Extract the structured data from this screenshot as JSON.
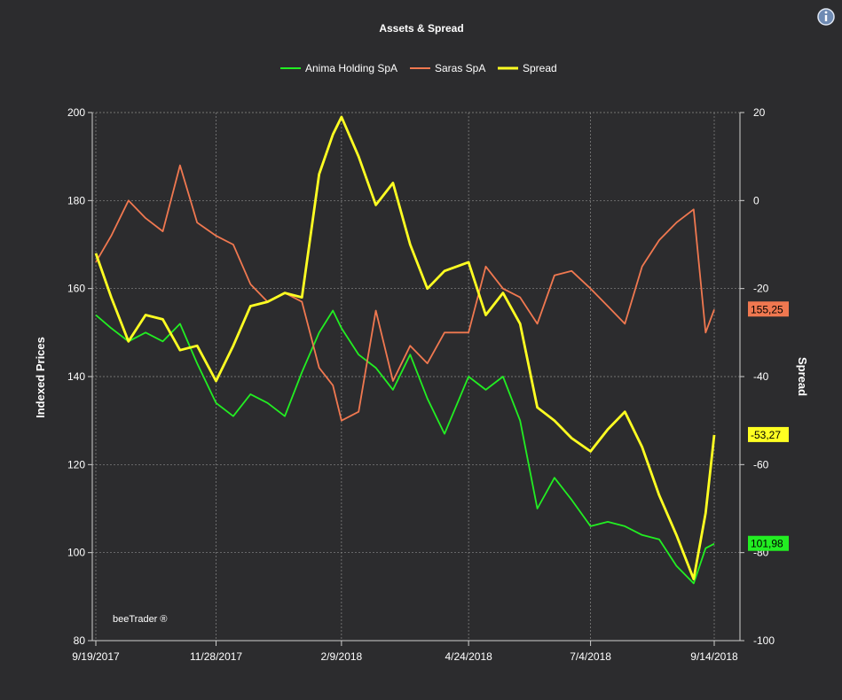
{
  "chart_data": {
    "type": "line",
    "title": "Assets & Spread",
    "credit": "beeTrader ®",
    "x_tick_labels": [
      "9/19/2017",
      "11/28/2017",
      "2/9/2018",
      "4/24/2018",
      "7/4/2018",
      "9/14/2018"
    ],
    "x_range": [
      "9/19/2017",
      "9/14/2018"
    ],
    "y_left": {
      "label": "Indexed Prices",
      "min": 80,
      "max": 200,
      "ticks": [
        80,
        100,
        120,
        140,
        160,
        180,
        200
      ]
    },
    "y_right": {
      "label": "Spread",
      "min": -100,
      "max": 20,
      "ticks": [
        -100,
        -80,
        -60,
        -40,
        -20,
        0,
        20
      ]
    },
    "grid": true,
    "legend_position": "top-center",
    "series": [
      {
        "name": "Anima Holding SpA",
        "color": "#22ee22",
        "axis": "left",
        "last_value_label": "101,98",
        "points": [
          [
            "9/19/2017",
            154
          ],
          [
            "9/28/2017",
            151
          ],
          [
            "10/8/2017",
            148
          ],
          [
            "10/18/2017",
            150
          ],
          [
            "10/28/2017",
            148
          ],
          [
            "11/7/2017",
            152
          ],
          [
            "11/17/2017",
            143
          ],
          [
            "11/28/2017",
            134
          ],
          [
            "12/8/2017",
            131
          ],
          [
            "12/18/2017",
            136
          ],
          [
            "12/28/2017",
            134
          ],
          [
            "1/7/2018",
            131
          ],
          [
            "1/17/2018",
            141
          ],
          [
            "1/27/2018",
            150
          ],
          [
            "2/4/2018",
            155
          ],
          [
            "2/9/2018",
            151
          ],
          [
            "2/19/2018",
            145
          ],
          [
            "3/1/2018",
            142
          ],
          [
            "3/11/2018",
            137
          ],
          [
            "3/21/2018",
            145
          ],
          [
            "3/31/2018",
            135
          ],
          [
            "4/10/2018",
            127
          ],
          [
            "4/24/2018",
            140
          ],
          [
            "5/4/2018",
            137
          ],
          [
            "5/14/2018",
            140
          ],
          [
            "5/24/2018",
            130
          ],
          [
            "6/3/2018",
            110
          ],
          [
            "6/13/2018",
            117
          ],
          [
            "6/23/2018",
            112
          ],
          [
            "7/4/2018",
            106
          ],
          [
            "7/14/2018",
            107
          ],
          [
            "7/24/2018",
            106
          ],
          [
            "8/3/2018",
            104
          ],
          [
            "8/13/2018",
            103
          ],
          [
            "8/23/2018",
            97
          ],
          [
            "9/2/2018",
            93
          ],
          [
            "9/9/2018",
            101
          ],
          [
            "9/14/2018",
            102
          ]
        ]
      },
      {
        "name": "Saras SpA",
        "color": "#f07850",
        "axis": "left",
        "last_value_label": "155,25",
        "points": [
          [
            "9/19/2017",
            166
          ],
          [
            "9/28/2017",
            172
          ],
          [
            "10/8/2017",
            180
          ],
          [
            "10/18/2017",
            176
          ],
          [
            "10/28/2017",
            173
          ],
          [
            "11/7/2017",
            188
          ],
          [
            "11/17/2017",
            175
          ],
          [
            "11/28/2017",
            172
          ],
          [
            "12/8/2017",
            170
          ],
          [
            "12/18/2017",
            161
          ],
          [
            "12/28/2017",
            157
          ],
          [
            "1/7/2018",
            159
          ],
          [
            "1/17/2018",
            157
          ],
          [
            "1/27/2018",
            142
          ],
          [
            "2/4/2018",
            138
          ],
          [
            "2/9/2018",
            130
          ],
          [
            "2/19/2018",
            132
          ],
          [
            "3/1/2018",
            155
          ],
          [
            "3/11/2018",
            139
          ],
          [
            "3/21/2018",
            147
          ],
          [
            "3/31/2018",
            143
          ],
          [
            "4/10/2018",
            150
          ],
          [
            "4/24/2018",
            150
          ],
          [
            "5/4/2018",
            165
          ],
          [
            "5/14/2018",
            160
          ],
          [
            "5/24/2018",
            158
          ],
          [
            "6/3/2018",
            152
          ],
          [
            "6/13/2018",
            163
          ],
          [
            "6/23/2018",
            164
          ],
          [
            "7/4/2018",
            160
          ],
          [
            "7/14/2018",
            156
          ],
          [
            "7/24/2018",
            152
          ],
          [
            "8/3/2018",
            165
          ],
          [
            "8/13/2018",
            171
          ],
          [
            "8/23/2018",
            175
          ],
          [
            "9/2/2018",
            178
          ],
          [
            "9/9/2018",
            150
          ],
          [
            "9/14/2018",
            155.25
          ]
        ]
      },
      {
        "name": "Spread",
        "color": "#ffff22",
        "axis": "right",
        "last_value_label": "-53,27",
        "points": [
          [
            "9/19/2017",
            -12
          ],
          [
            "9/28/2017",
            -22
          ],
          [
            "10/8/2017",
            -32
          ],
          [
            "10/18/2017",
            -26
          ],
          [
            "10/28/2017",
            -27
          ],
          [
            "11/7/2017",
            -34
          ],
          [
            "11/17/2017",
            -33
          ],
          [
            "11/28/2017",
            -41
          ],
          [
            "12/8/2017",
            -33
          ],
          [
            "12/18/2017",
            -24
          ],
          [
            "12/28/2017",
            -23
          ],
          [
            "1/7/2018",
            -21
          ],
          [
            "1/17/2018",
            -22
          ],
          [
            "1/27/2018",
            6
          ],
          [
            "2/4/2018",
            15
          ],
          [
            "2/9/2018",
            19
          ],
          [
            "2/19/2018",
            10
          ],
          [
            "3/1/2018",
            -1
          ],
          [
            "3/11/2018",
            4
          ],
          [
            "3/21/2018",
            -10
          ],
          [
            "3/31/2018",
            -20
          ],
          [
            "4/10/2018",
            -16
          ],
          [
            "4/24/2018",
            -14
          ],
          [
            "5/4/2018",
            -26
          ],
          [
            "5/14/2018",
            -21
          ],
          [
            "5/24/2018",
            -28
          ],
          [
            "6/3/2018",
            -47
          ],
          [
            "6/13/2018",
            -50
          ],
          [
            "6/23/2018",
            -54
          ],
          [
            "7/4/2018",
            -57
          ],
          [
            "7/14/2018",
            -52
          ],
          [
            "7/24/2018",
            -48
          ],
          [
            "8/3/2018",
            -56
          ],
          [
            "8/13/2018",
            -67
          ],
          [
            "8/23/2018",
            -76
          ],
          [
            "9/2/2018",
            -86
          ],
          [
            "9/9/2018",
            -71
          ],
          [
            "9/14/2018",
            -53.27
          ]
        ]
      }
    ]
  }
}
